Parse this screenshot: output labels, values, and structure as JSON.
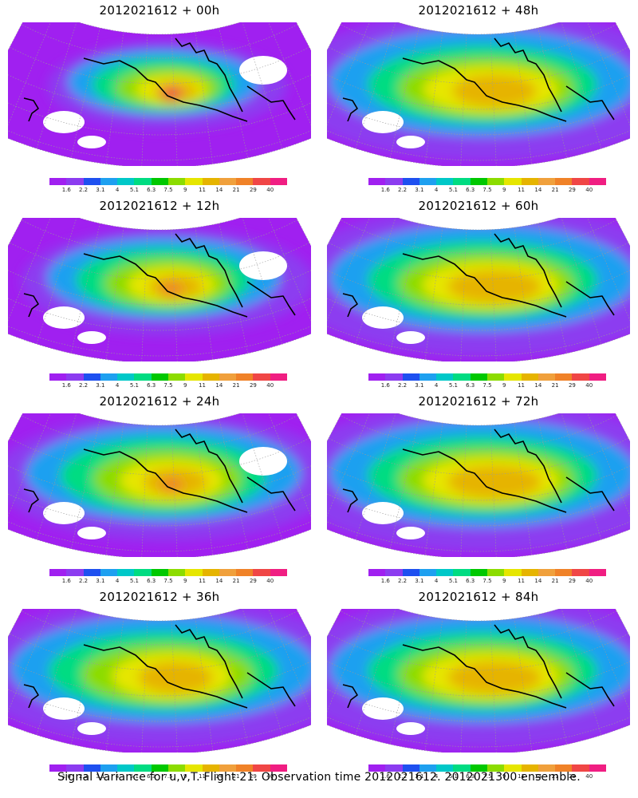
{
  "colorbar": {
    "colors": [
      "#a020f0",
      "#8c3cf0",
      "#1e50f0",
      "#1ea0f0",
      "#00c8c8",
      "#00dc82",
      "#00c800",
      "#8cdc00",
      "#e6e600",
      "#e6b400",
      "#f0a03c",
      "#f08228",
      "#f04646",
      "#f01e82"
    ],
    "labels": [
      "1.6",
      "2.2",
      "3.1",
      "4",
      "5.1",
      "6.3",
      "7.5",
      "9",
      "11",
      "14",
      "21",
      "29",
      "40"
    ]
  },
  "panels": [
    {
      "title": "2012021612 + 00h",
      "stage": 0
    },
    {
      "title": "2012021612 + 48h",
      "stage": 4
    },
    {
      "title": "2012021612 + 12h",
      "stage": 1
    },
    {
      "title": "2012021612 + 60h",
      "stage": 5
    },
    {
      "title": "2012021612 + 24h",
      "stage": 2
    },
    {
      "title": "2012021612 + 72h",
      "stage": 6
    },
    {
      "title": "2012021612 + 36h",
      "stage": 3
    },
    {
      "title": "2012021612 + 84h",
      "stage": 7
    }
  ],
  "footer": "Signal Variance for u,v,T.  Flight 21.  Observation time 2012021612.  2012021300 ensemble."
}
